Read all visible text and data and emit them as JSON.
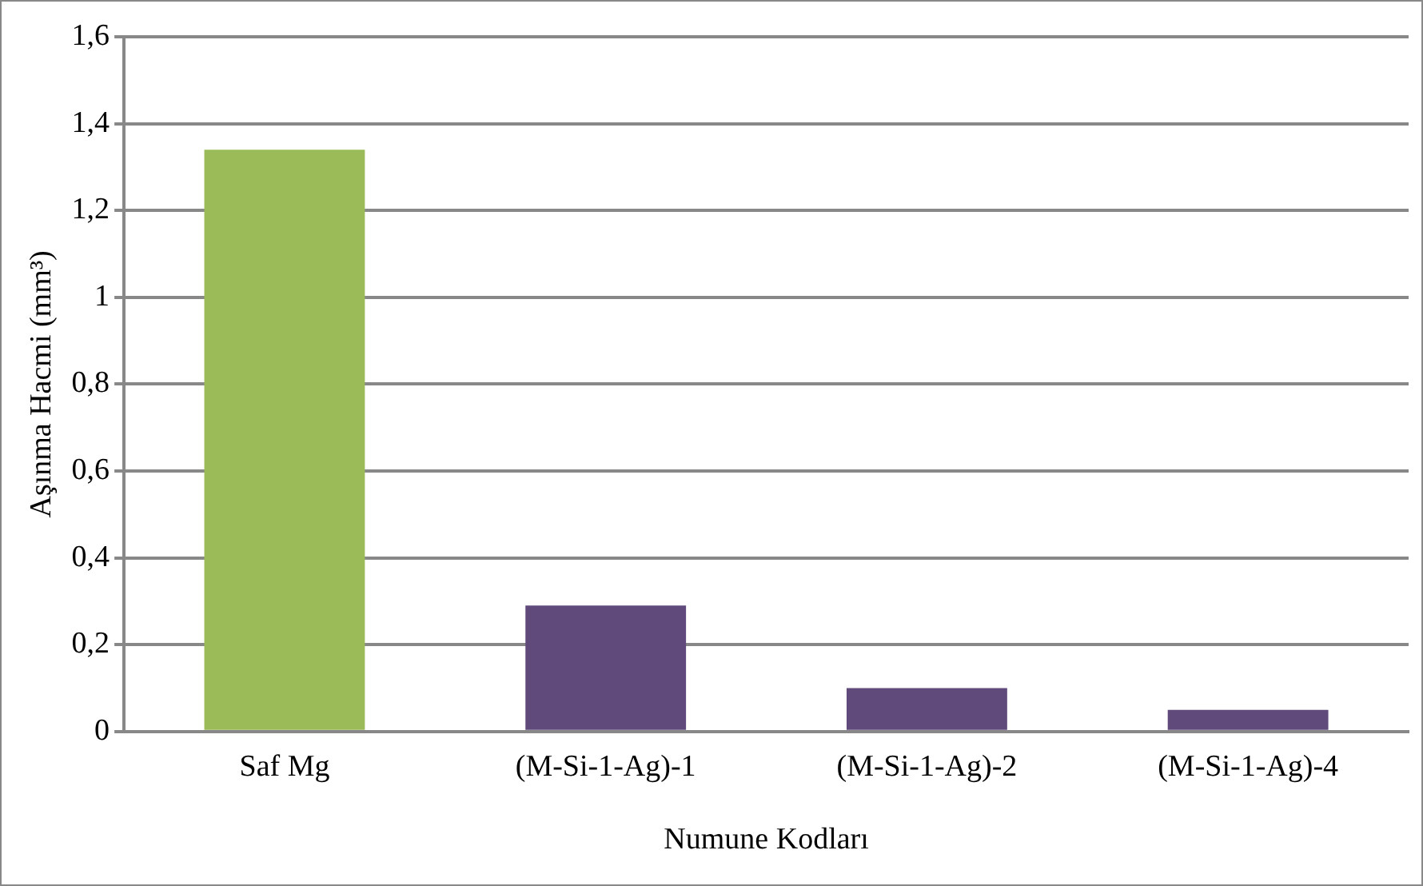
{
  "chart_data": {
    "type": "bar",
    "xlabel": "Numune Kodları",
    "ylabel": "Aşınma Hacmi (mm³)",
    "categories": [
      "Saf Mg",
      "(M-Si-1-Ag)-1",
      "(M-Si-1-Ag)-2",
      "(M-Si-1-Ag)-4"
    ],
    "values": [
      1.34,
      0.29,
      0.1,
      0.05
    ],
    "colors": [
      "#9bbb59",
      "#604a7b",
      "#604a7b",
      "#604a7b"
    ],
    "ylim": [
      0,
      1.6
    ],
    "yticks": [
      0,
      {
        "value": 0.2,
        "label": "0,2"
      },
      {
        "value": 0.4,
        "label": "0,4"
      },
      {
        "value": 0.6,
        "label": "0,6"
      },
      {
        "value": 0.8,
        "label": "0,8"
      },
      1,
      {
        "value": 1.2,
        "label": "1,2"
      },
      {
        "value": 1.4,
        "label": "1,4"
      },
      {
        "value": 1.6,
        "label": "1,6"
      }
    ],
    "grid": "y"
  }
}
